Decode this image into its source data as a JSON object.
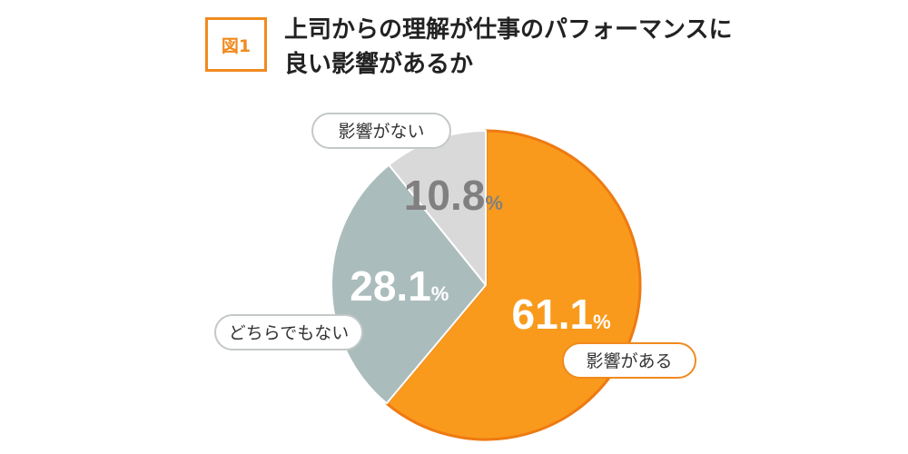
{
  "figure": {
    "badge": "図1",
    "title": "上司からの理解が仕事のパフォーマンスに\n良い影響があるか"
  },
  "chart_data": {
    "type": "pie",
    "title": "上司からの理解が仕事のパフォーマンスに良い影響があるか",
    "unit": "%",
    "slices": [
      {
        "label": "影響がある",
        "value": 61.1,
        "display": "61.1",
        "color": "#f99a1c",
        "edge": "#ee7a12",
        "text_color": "#ffffff"
      },
      {
        "label": "どちらでもない",
        "value": 28.1,
        "display": "28.1",
        "color": "#abbcbc",
        "edge": "#ffffff",
        "text_color": "#ffffff"
      },
      {
        "label": "影響がない",
        "value": 10.8,
        "display": "10.8",
        "color": "#d9d9d9",
        "edge": "#ffffff",
        "text_color": "#808080"
      }
    ]
  }
}
